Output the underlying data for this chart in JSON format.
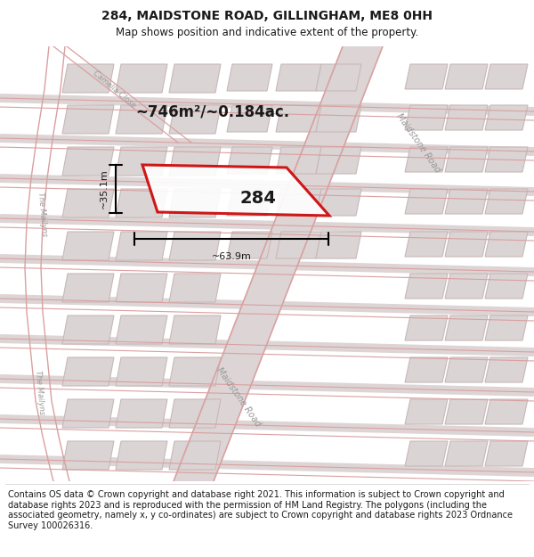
{
  "title": "284, MAIDSTONE ROAD, GILLINGHAM, ME8 0HH",
  "subtitle": "Map shows position and indicative extent of the property.",
  "footer": "Contains OS data © Crown copyright and database right 2021. This information is subject to Crown copyright and database rights 2023 and is reproduced with the permission of HM Land Registry. The polygons (including the associated geometry, namely x, y co-ordinates) are subject to Crown copyright and database rights 2023 Ordnance Survey 100026316.",
  "area_label": "~746m²/~0.184ac.",
  "width_label": "~63.9m",
  "height_label": "~35.1m",
  "plot_number": "284",
  "map_bg": "#ede9e9",
  "road_color": "#d9a0a0",
  "building_fill": "#dbd4d4",
  "building_edge": "#c8b8b8",
  "highlight_color": "#cc0000",
  "text_color": "#1a1a1a",
  "road_label_color": "#999999",
  "title_fontsize": 10,
  "subtitle_fontsize": 8.5,
  "footer_fontsize": 7
}
